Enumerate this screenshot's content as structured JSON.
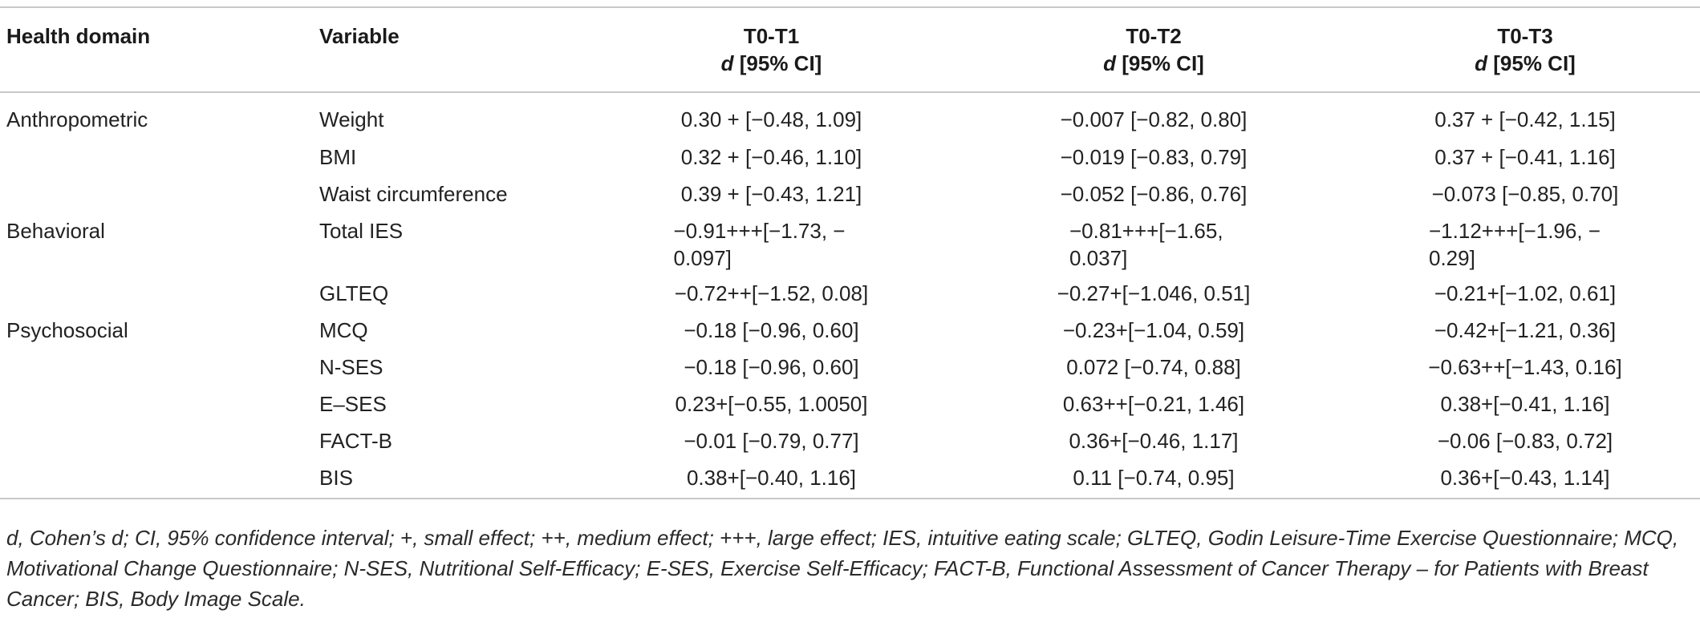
{
  "header": {
    "health_domain": "Health domain",
    "variable": "Variable",
    "t0t1_line1": "T0-T1",
    "t0t2_line1": "T0-T2",
    "t0t3_line1": "T0-T3",
    "d_symbol": "d",
    "ci_label": "[95% CI]"
  },
  "rows": [
    {
      "domain": "Anthropometric",
      "variable": "Weight",
      "t1": "0.30 + [−0.48, 1.09]",
      "t2": "−0.007 [−0.82, 0.80]",
      "t3": "0.37 + [−0.42, 1.15]"
    },
    {
      "domain": "",
      "variable": "BMI",
      "t1": "0.32 + [−0.46, 1.10]",
      "t2": "−0.019 [−0.83, 0.79]",
      "t3": "0.37 + [−0.41, 1.16]"
    },
    {
      "domain": "",
      "variable": "Waist circumference",
      "t1": "0.39 + [−0.43, 1.21]",
      "t2": "−0.052 [−0.86, 0.76]",
      "t3": "−0.073 [−0.85, 0.70]"
    },
    {
      "domain": "Behavioral",
      "variable": "Total IES",
      "t1": "−0.91+++[−1.73, − 0.097]",
      "t2": "−0.81+++[−1.65, 0.037]",
      "t3": "−1.12+++[−1.96, − 0.29]"
    },
    {
      "domain": "",
      "variable": "GLTEQ",
      "t1": "−0.72++[−1.52, 0.08]",
      "t2": "−0.27+[−1.046, 0.51]",
      "t3": "−0.21+[−1.02, 0.61]"
    },
    {
      "domain": "Psychosocial",
      "variable": "MCQ",
      "t1": "−0.18 [−0.96, 0.60]",
      "t2": "−0.23+[−1.04, 0.59]",
      "t3": "−0.42+[−1.21, 0.36]"
    },
    {
      "domain": "",
      "variable": "N-SES",
      "t1": "−0.18 [−0.96, 0.60]",
      "t2": "0.072 [−0.74, 0.88]",
      "t3": "−0.63++[−1.43, 0.16]"
    },
    {
      "domain": "",
      "variable": "E–SES",
      "t1": "0.23+[−0.55, 1.0050]",
      "t2": "0.63++[−0.21, 1.46]",
      "t3": "0.38+[−0.41, 1.16]"
    },
    {
      "domain": "",
      "variable": "FACT-B",
      "t1": "−0.01 [−0.79, 0.77]",
      "t2": "0.36+[−0.46, 1.17]",
      "t3": "−0.06 [−0.83, 0.72]"
    },
    {
      "domain": "",
      "variable": "BIS",
      "t1": "0.38+[−0.40, 1.16]",
      "t2": "0.11 [−0.74, 0.95]",
      "t3": "0.36+[−0.43, 1.14]"
    }
  ],
  "footnote": "d, Cohen’s d; CI, 95% confidence interval; +, small effect; ++, medium effect; +++, large effect; IES, intuitive eating scale; GLTEQ, Godin Leisure-Time Exercise Questionnaire; MCQ, Motivational Change Questionnaire; N-SES, Nutritional Self-Efficacy; E-SES, Exercise Self-Efficacy; FACT-B, Functional Assessment of Cancer Therapy – for Patients with Breast Cancer; BIS, Body Image Scale."
}
